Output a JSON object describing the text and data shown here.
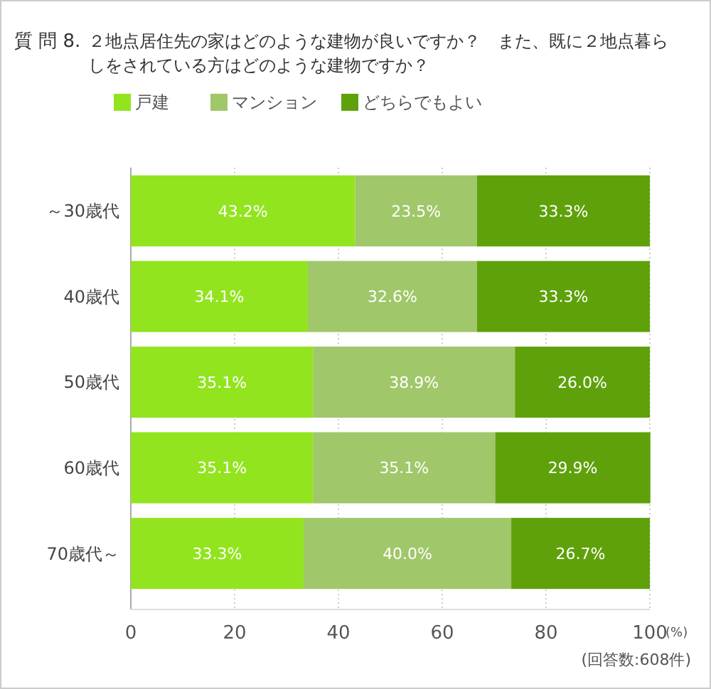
{
  "chart_data": {
    "type": "bar",
    "orientation": "horizontal",
    "stacked": true,
    "title": "質 問 8.",
    "subtitle": "２地点居住先の家はどのような建物が良いですか？　また、既に２地点暮らしをされている方はどのような建物ですか？",
    "xlabel": "(%)",
    "annotations": [
      "(回答数:608件)"
    ],
    "categories": [
      "～30歳代",
      "40歳代",
      "50歳代",
      "60歳代",
      "70歳代～"
    ],
    "series": [
      {
        "name": "戸建",
        "color": "#92e41e",
        "values": [
          43.2,
          34.1,
          35.1,
          35.1,
          33.3
        ],
        "value_labels": [
          "43.2%",
          "34.1%",
          "35.1%",
          "35.1%",
          "33.3%"
        ]
      },
      {
        "name": "マンション",
        "color": "#a0c76a",
        "values": [
          23.5,
          32.6,
          38.9,
          35.1,
          40.0
        ],
        "value_labels": [
          "23.5%",
          "32.6%",
          "38.9%",
          "35.1%",
          "40.0%"
        ]
      },
      {
        "name": "どちらでもよい",
        "color": "#5fa10b",
        "values": [
          33.3,
          33.3,
          26.0,
          29.9,
          26.7
        ],
        "value_labels": [
          "33.3%",
          "33.3%",
          "26.0%",
          "29.9%",
          "26.7%"
        ]
      }
    ],
    "xlim": [
      0,
      100
    ],
    "xticks": [
      0,
      20,
      40,
      60,
      80,
      100
    ],
    "grid": "x",
    "legend": "top"
  }
}
